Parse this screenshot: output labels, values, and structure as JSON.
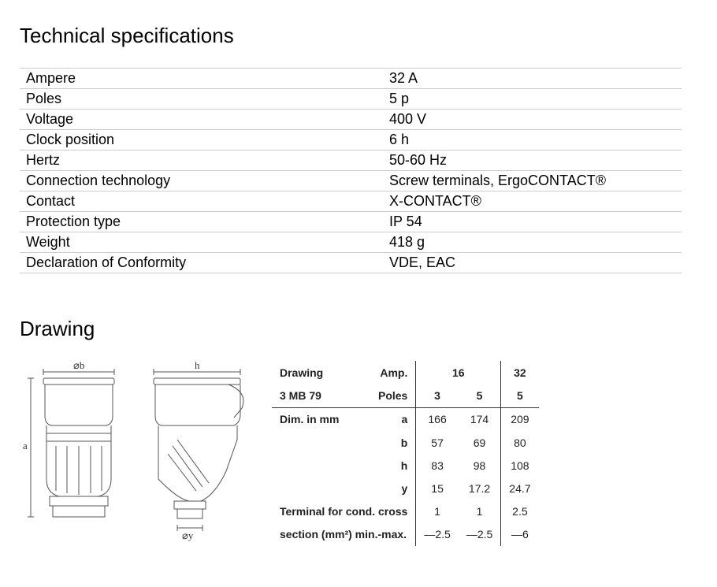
{
  "specs_title": "Technical specifications",
  "drawing_title": "Drawing",
  "spec_table": {
    "rows": [
      {
        "label": "Ampere",
        "value": "32 A"
      },
      {
        "label": "Poles",
        "value": "5 p"
      },
      {
        "label": "Voltage",
        "value": "400 V"
      },
      {
        "label": "Clock position",
        "value": "6 h"
      },
      {
        "label": "Hertz",
        "value": "50-60 Hz"
      },
      {
        "label": "Connection technology",
        "value": "Screw terminals, ErgoCONTACT®"
      },
      {
        "label": "Contact",
        "value": "X-CONTACT®"
      },
      {
        "label": "Protection type",
        "value": "IP 54"
      },
      {
        "label": "Weight",
        "value": "418 g"
      },
      {
        "label": "Declaration of Conformity",
        "value": "VDE, EAC"
      }
    ]
  },
  "drawing_labels": {
    "diam_b": "⌀b",
    "h": "h",
    "a": "a",
    "diam_y": "⌀y"
  },
  "dim_table": {
    "header1_left": "Drawing",
    "header1_amp": "Amp.",
    "header1_v1": "16",
    "header1_v2": "32",
    "header2_left": "3 MB 79",
    "header2_poles": "Poles",
    "header2_v1": "3",
    "header2_v2": "5",
    "header2_v3": "5",
    "dim_label": "Dim. in mm",
    "rows": [
      {
        "sym": "a",
        "v1": "166",
        "v2": "174",
        "v3": "209"
      },
      {
        "sym": "b",
        "v1": "57",
        "v2": "69",
        "v3": "80"
      },
      {
        "sym": "h",
        "v1": "83",
        "v2": "98",
        "v3": "108"
      },
      {
        "sym": "y",
        "v1": "15",
        "v2": "17.2",
        "v3": "24.7"
      }
    ],
    "terminal_line1": "Terminal for cond. cross",
    "terminal_v1": "1",
    "terminal_v2": "1",
    "terminal_v3": "2.5",
    "terminal_line2": "section (mm²) min.-max.",
    "section_v1": "—2.5",
    "section_v2": "—2.5",
    "section_v3": "—6"
  }
}
